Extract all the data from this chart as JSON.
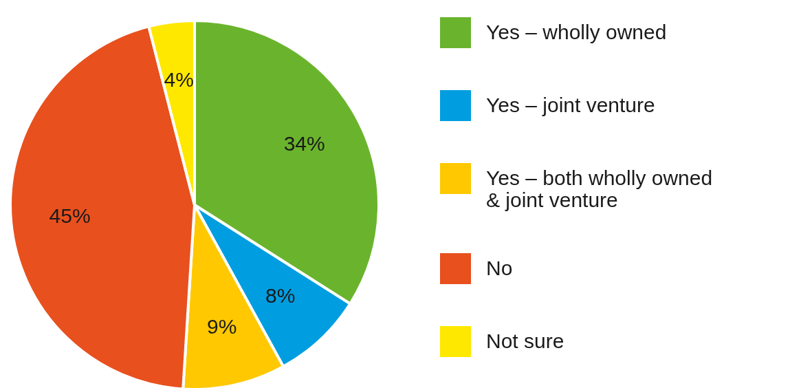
{
  "chart_data": {
    "type": "pie",
    "categories": [
      "Yes – wholly owned",
      "Yes – joint venture",
      "Yes – both wholly owned & joint venture",
      "No",
      "Not sure"
    ],
    "values": [
      34,
      8,
      9,
      45,
      4
    ],
    "colors": [
      "#6ab42d",
      "#009ee0",
      "#ffc800",
      "#e8501e",
      "#ffe800"
    ],
    "value_labels": [
      "34%",
      "8%",
      "9%",
      "45%",
      "4%"
    ],
    "legend": "right"
  }
}
